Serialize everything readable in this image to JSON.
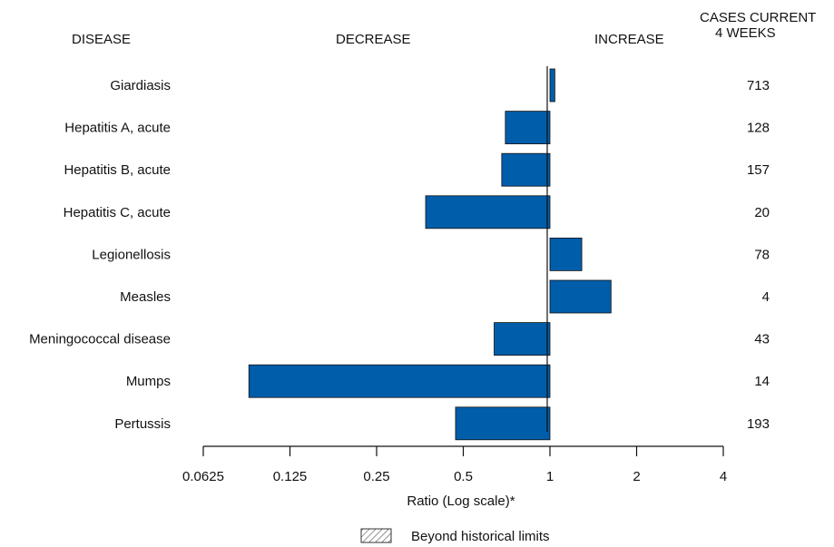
{
  "headers": {
    "disease": "DISEASE",
    "decrease": "DECREASE",
    "increase": "INCREASE",
    "cases_line1": "CASES CURRENT",
    "cases_line2": "4 WEEKS"
  },
  "legend": {
    "label": "Beyond historical limits"
  },
  "chart_data": {
    "type": "bar",
    "orientation": "horizontal",
    "scale": "log2",
    "baseline": 1,
    "xlabel": "Ratio (Log scale)*",
    "xlim": [
      0.0625,
      4
    ],
    "ticks": [
      0.0625,
      0.125,
      0.25,
      0.5,
      1,
      2,
      4
    ],
    "tick_labels": [
      "0.0625",
      "0.125",
      "0.25",
      "0.5",
      "1",
      "2",
      "4"
    ],
    "bar_color": "#005DAA",
    "categories": [
      "Giardiasis",
      "Hepatitis A, acute",
      "Hepatitis B, acute",
      "Hepatitis C, acute",
      "Legionellosis",
      "Measles",
      "Meningococcal disease",
      "Mumps",
      "Pertussis"
    ],
    "values": [
      1.04,
      0.7,
      0.68,
      0.37,
      1.29,
      1.63,
      0.64,
      0.09,
      0.47
    ],
    "cases": [
      "713",
      "128",
      "157",
      "20",
      "78",
      "4",
      "43",
      "14",
      "193"
    ]
  }
}
